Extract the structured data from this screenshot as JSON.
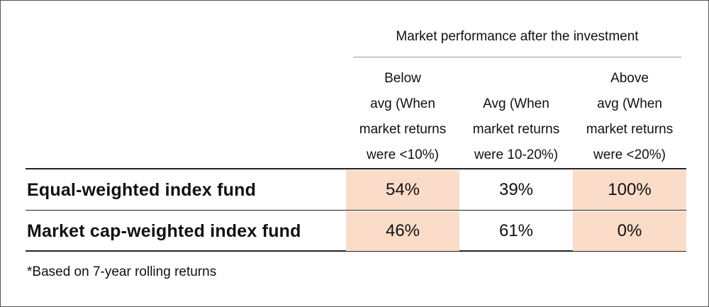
{
  "table": {
    "group_title": "Market performance after the investment",
    "columns": [
      [
        "Below",
        "avg (When",
        "market returns",
        "were <10%)"
      ],
      [
        "Avg (When",
        "market returns",
        "were 10-20%)"
      ],
      [
        "Above",
        "avg (When",
        "market returns",
        "were <20%)"
      ]
    ],
    "rows": [
      [
        "Equal-weighted index fund",
        "54%",
        "39%",
        "100%"
      ],
      [
        "Market cap-weighted index fund",
        "46%",
        "61%",
        "0%"
      ]
    ],
    "footnote": "*Based on 7-year rolling returns"
  }
}
